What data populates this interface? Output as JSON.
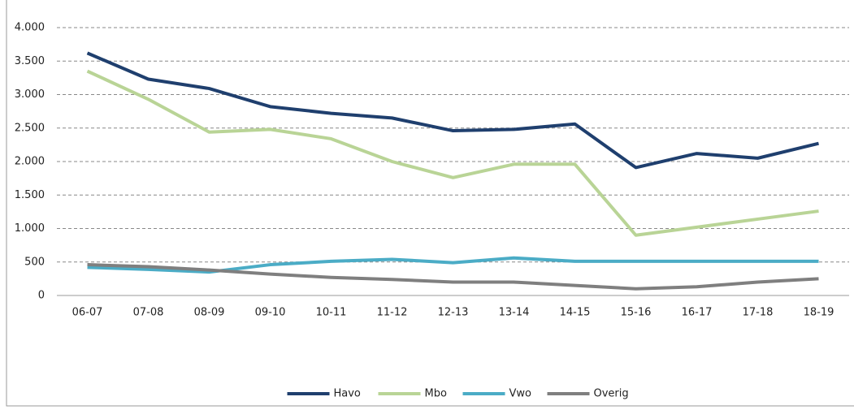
{
  "chart_data": {
    "type": "line",
    "categories": [
      "06-07",
      "07-08",
      "08-09",
      "09-10",
      "10-11",
      "11-12",
      "12-13",
      "13-14",
      "14-15",
      "15-16",
      "16-17",
      "17-18",
      "18-19"
    ],
    "series": [
      {
        "name": "Havo",
        "color": "#1f3f6e",
        "values": [
          3620,
          3230,
          3090,
          2820,
          2720,
          2650,
          2460,
          2480,
          2560,
          1910,
          2120,
          2050,
          2270
        ]
      },
      {
        "name": "Mbo",
        "color": "#b9d496",
        "values": [
          3350,
          2930,
          2440,
          2480,
          2340,
          2000,
          1760,
          1960,
          1960,
          900,
          1020,
          1140,
          1260
        ]
      },
      {
        "name": "Vwo",
        "color": "#4bacc6",
        "values": [
          420,
          390,
          350,
          460,
          510,
          540,
          490,
          560,
          510,
          510,
          510,
          510,
          510
        ]
      },
      {
        "name": "Overig",
        "color": "#7f7f7f",
        "values": [
          460,
          430,
          380,
          320,
          270,
          240,
          200,
          200,
          150,
          100,
          130,
          200,
          250
        ]
      }
    ],
    "ylim": [
      0,
      4000
    ],
    "yticks": [
      0,
      500,
      {
        "value": 1000,
        "label": "1.000"
      },
      {
        "value": 1500,
        "label": "1.500"
      },
      {
        "value": 2000,
        "label": "2.000"
      },
      {
        "value": 2500,
        "label": "2.500"
      },
      {
        "value": 3000,
        "label": "3.000"
      },
      {
        "value": 3500,
        "label": "3.500"
      },
      {
        "value": 4000,
        "label": "4.000"
      }
    ],
    "grid": true,
    "legend": "bottom"
  }
}
